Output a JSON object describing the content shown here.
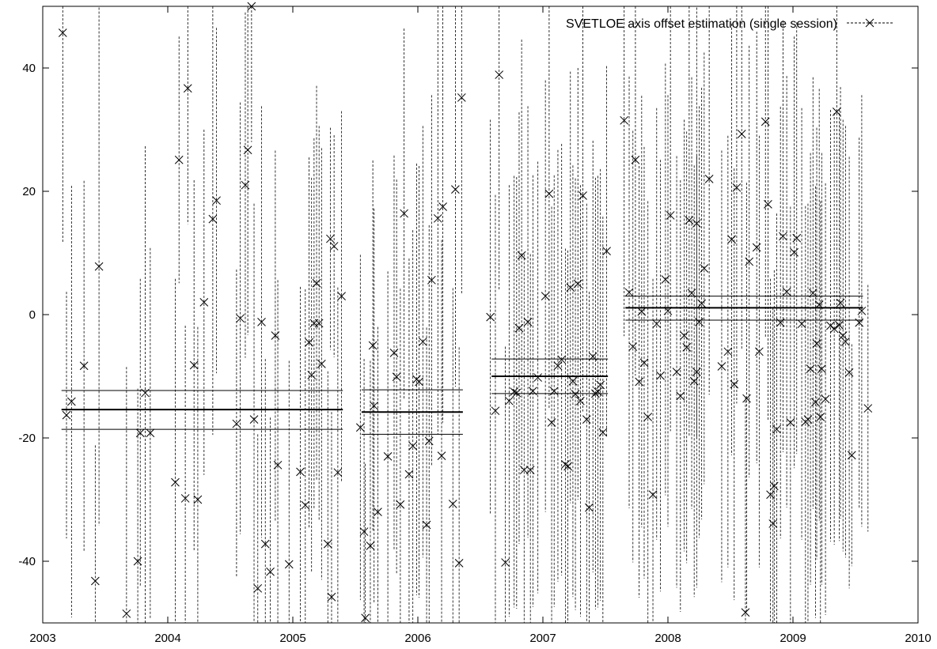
{
  "chart_data": {
    "type": "scatter",
    "title": "",
    "xlabel": "",
    "ylabel": "",
    "xlim": [
      2003,
      2010
    ],
    "ylim": [
      -50,
      50
    ],
    "x_ticks": [
      2003,
      2004,
      2005,
      2006,
      2007,
      2008,
      2009,
      2010
    ],
    "y_ticks": [
      -40,
      -20,
      0,
      20,
      40
    ],
    "grid": false,
    "legend_position": "top-right",
    "series": [
      {
        "name": "SVETLOE axis offset estimation (single session)",
        "marker": "x",
        "error_bars": "vertical dashed",
        "points": [
          [
            2003.16,
            45.7,
            34
          ],
          [
            2003.19,
            -16.3,
            20
          ],
          [
            2003.23,
            -14.1,
            35
          ],
          [
            2003.33,
            -8.3,
            30
          ],
          [
            2003.42,
            -43.2,
            22
          ],
          [
            2003.45,
            7.8,
            42
          ],
          [
            2003.67,
            -48.5,
            40
          ],
          [
            2003.76,
            -40.0,
            28
          ],
          [
            2003.78,
            -19.2,
            25
          ],
          [
            2003.82,
            -12.7,
            40
          ],
          [
            2003.86,
            -19.2,
            30
          ],
          [
            2004.06,
            -27.2,
            33
          ],
          [
            2004.09,
            25.1,
            20
          ],
          [
            2004.14,
            -29.8,
            28
          ],
          [
            2004.16,
            36.7,
            22
          ],
          [
            2004.21,
            -8.2,
            30
          ],
          [
            2004.24,
            -30.0,
            28
          ],
          [
            2004.29,
            2.0,
            28
          ],
          [
            2004.36,
            15.5,
            35
          ],
          [
            2004.39,
            18.5,
            28
          ],
          [
            2004.55,
            -17.7,
            25
          ],
          [
            2004.58,
            -0.6,
            35
          ],
          [
            2004.62,
            21.0,
            28
          ],
          [
            2004.64,
            26.7,
            30
          ],
          [
            2004.67,
            50.0,
            22
          ],
          [
            2004.69,
            -17.0,
            35
          ],
          [
            2004.72,
            -44.4,
            25
          ],
          [
            2004.75,
            -1.2,
            35
          ],
          [
            2004.78,
            -37.2,
            30
          ],
          [
            2004.82,
            -41.7,
            25
          ],
          [
            2004.86,
            -3.4,
            30
          ],
          [
            2004.88,
            -24.4,
            30
          ],
          [
            2004.97,
            -40.5,
            33
          ],
          [
            2005.06,
            -25.5,
            30
          ],
          [
            2005.1,
            -30.9,
            35
          ],
          [
            2005.13,
            -4.5,
            30
          ],
          [
            2005.15,
            -9.8,
            32
          ],
          [
            2005.17,
            -1.4,
            30
          ],
          [
            2005.19,
            5.1,
            32
          ],
          [
            2005.21,
            -1.4,
            32
          ],
          [
            2005.23,
            -8.0,
            35
          ],
          [
            2005.28,
            -37.2,
            28
          ],
          [
            2005.3,
            12.3,
            18
          ],
          [
            2005.31,
            -45.8,
            30
          ],
          [
            2005.33,
            11.1,
            18
          ],
          [
            2005.36,
            -25.6,
            30
          ],
          [
            2005.39,
            3.0,
            30
          ],
          [
            2005.54,
            -18.3,
            28
          ],
          [
            2005.57,
            -35.2,
            28
          ],
          [
            2005.58,
            -49.2,
            25
          ],
          [
            2005.62,
            -37.5,
            30
          ],
          [
            2005.64,
            -5.0,
            30
          ],
          [
            2005.65,
            -14.8,
            32
          ],
          [
            2005.68,
            -32.0,
            30
          ],
          [
            2005.76,
            -23.0,
            30
          ],
          [
            2005.81,
            -6.2,
            32
          ],
          [
            2005.83,
            -10.1,
            32
          ],
          [
            2005.86,
            -30.8,
            35
          ],
          [
            2005.89,
            16.4,
            30
          ],
          [
            2005.93,
            -25.9,
            35
          ],
          [
            2005.96,
            -21.3,
            35
          ],
          [
            2005.99,
            -10.5,
            35
          ],
          [
            2006.01,
            -10.9,
            35
          ],
          [
            2006.04,
            -4.4,
            35
          ],
          [
            2006.07,
            -34.1,
            32
          ],
          [
            2006.09,
            -20.5,
            35
          ],
          [
            2006.11,
            5.6,
            30
          ],
          [
            2006.16,
            15.6,
            35
          ],
          [
            2006.19,
            -22.9,
            35
          ],
          [
            2006.2,
            17.5,
            35
          ],
          [
            2006.28,
            -30.7,
            35
          ],
          [
            2006.3,
            20.3,
            32
          ],
          [
            2006.33,
            -40.3,
            35
          ],
          [
            2006.35,
            35.2,
            32
          ],
          [
            2006.58,
            -0.4,
            32
          ],
          [
            2006.62,
            -15.6,
            35
          ],
          [
            2006.65,
            38.9,
            35
          ],
          [
            2006.7,
            -40.2,
            35
          ],
          [
            2006.73,
            -14.0,
            35
          ],
          [
            2006.77,
            -12.5,
            35
          ],
          [
            2006.79,
            -12.7,
            35
          ],
          [
            2006.81,
            -2.2,
            35
          ],
          [
            2006.83,
            9.6,
            35
          ],
          [
            2006.85,
            -25.2,
            35
          ],
          [
            2006.88,
            -1.2,
            35
          ],
          [
            2006.9,
            -25.2,
            35
          ],
          [
            2006.92,
            -12.4,
            35
          ],
          [
            2006.96,
            -10.2,
            35
          ],
          [
            2007.02,
            3.0,
            35
          ],
          [
            2007.05,
            19.6,
            35
          ],
          [
            2007.07,
            -17.5,
            35
          ],
          [
            2007.09,
            -12.4,
            35
          ],
          [
            2007.12,
            -8.3,
            35
          ],
          [
            2007.15,
            -7.3,
            35
          ],
          [
            2007.18,
            -24.3,
            35
          ],
          [
            2007.2,
            -24.6,
            35
          ],
          [
            2007.22,
            4.4,
            35
          ],
          [
            2007.24,
            -10.8,
            35
          ],
          [
            2007.26,
            -12.9,
            35
          ],
          [
            2007.28,
            5.0,
            35
          ],
          [
            2007.3,
            -14.0,
            35
          ],
          [
            2007.32,
            19.3,
            35
          ],
          [
            2007.35,
            -17.0,
            35
          ],
          [
            2007.37,
            -31.3,
            35
          ],
          [
            2007.4,
            -6.8,
            35
          ],
          [
            2007.42,
            -12.8,
            35
          ],
          [
            2007.44,
            -12.5,
            35
          ],
          [
            2007.46,
            -11.4,
            35
          ],
          [
            2007.48,
            -19.1,
            35
          ],
          [
            2007.51,
            10.3,
            30
          ],
          [
            2007.65,
            31.5,
            35
          ],
          [
            2007.69,
            3.6,
            35
          ],
          [
            2007.72,
            -5.2,
            35
          ],
          [
            2007.74,
            25.1,
            35
          ],
          [
            2007.77,
            -10.9,
            35
          ],
          [
            2007.79,
            0.5,
            35
          ],
          [
            2007.81,
            -7.8,
            35
          ],
          [
            2007.84,
            -16.6,
            35
          ],
          [
            2007.88,
            -29.2,
            35
          ],
          [
            2007.91,
            -1.5,
            35
          ],
          [
            2007.94,
            -9.9,
            35
          ],
          [
            2007.98,
            5.7,
            35
          ],
          [
            2008.0,
            0.6,
            35
          ],
          [
            2008.02,
            16.1,
            35
          ],
          [
            2008.07,
            -9.3,
            35
          ],
          [
            2008.1,
            -13.2,
            35
          ],
          [
            2008.13,
            -3.4,
            35
          ],
          [
            2008.15,
            -5.3,
            35
          ],
          [
            2008.17,
            15.3,
            35
          ],
          [
            2008.19,
            3.5,
            35
          ],
          [
            2008.21,
            -10.8,
            35
          ],
          [
            2008.23,
            -9.3,
            35
          ],
          [
            2008.23,
            14.8,
            35
          ],
          [
            2008.25,
            -1.2,
            35
          ],
          [
            2008.27,
            1.8,
            35
          ],
          [
            2008.29,
            7.5,
            35
          ],
          [
            2008.33,
            22.0,
            35
          ],
          [
            2008.43,
            -8.4,
            35
          ],
          [
            2008.48,
            -6.0,
            35
          ],
          [
            2008.51,
            12.2,
            35
          ],
          [
            2008.53,
            -11.3,
            35
          ],
          [
            2008.55,
            20.6,
            35
          ],
          [
            2008.59,
            29.3,
            35
          ],
          [
            2008.62,
            -48.3,
            35
          ],
          [
            2008.63,
            -13.6,
            35
          ],
          [
            2008.65,
            8.6,
            35
          ],
          [
            2008.71,
            10.9,
            35
          ],
          [
            2008.73,
            -6.0,
            35
          ],
          [
            2008.78,
            31.3,
            35
          ],
          [
            2008.8,
            17.9,
            35
          ],
          [
            2008.82,
            -29.2,
            35
          ],
          [
            2008.84,
            -33.9,
            35
          ],
          [
            2008.85,
            -27.8,
            35
          ],
          [
            2008.87,
            -18.6,
            35
          ],
          [
            2008.9,
            -1.3,
            35
          ],
          [
            2008.92,
            12.7,
            35
          ],
          [
            2008.95,
            3.7,
            35
          ],
          [
            2008.98,
            -17.5,
            35
          ],
          [
            2009.01,
            10.1,
            35
          ],
          [
            2009.03,
            12.4,
            35
          ],
          [
            2009.07,
            -1.5,
            35
          ],
          [
            2009.1,
            -17.4,
            35
          ],
          [
            2009.12,
            -17.0,
            35
          ],
          [
            2009.14,
            -8.8,
            35
          ],
          [
            2009.16,
            3.5,
            35
          ],
          [
            2009.18,
            -14.2,
            35
          ],
          [
            2009.19,
            -4.7,
            35
          ],
          [
            2009.21,
            1.6,
            35
          ],
          [
            2009.22,
            -16.6,
            35
          ],
          [
            2009.23,
            -8.8,
            35
          ],
          [
            2009.26,
            -13.7,
            35
          ],
          [
            2009.3,
            -1.8,
            35
          ],
          [
            2009.33,
            -2.3,
            35
          ],
          [
            2009.35,
            32.9,
            35
          ],
          [
            2009.37,
            -1.7,
            35
          ],
          [
            2009.38,
            1.9,
            35
          ],
          [
            2009.4,
            -3.4,
            35
          ],
          [
            2009.42,
            -4.4,
            35
          ],
          [
            2009.45,
            -9.4,
            35
          ],
          [
            2009.47,
            -22.8,
            18
          ],
          [
            2009.53,
            -1.3,
            30
          ],
          [
            2009.55,
            0.6,
            35
          ],
          [
            2009.6,
            -15.2,
            20
          ]
        ]
      }
    ],
    "reference_lines": [
      {
        "x_start": 2003.15,
        "x_end": 2005.4,
        "mean": -15.4,
        "lower": -18.6,
        "upper": -12.3
      },
      {
        "x_start": 2005.55,
        "x_end": 2006.36,
        "mean": -15.8,
        "lower": -19.4,
        "upper": -12.2
      },
      {
        "x_start": 2006.59,
        "x_end": 2007.52,
        "mean": -10.0,
        "lower": -12.8,
        "upper": -7.2
      },
      {
        "x_start": 2007.66,
        "x_end": 2009.56,
        "mean": 1.1,
        "lower": -0.9,
        "upper": 3.0
      }
    ]
  }
}
